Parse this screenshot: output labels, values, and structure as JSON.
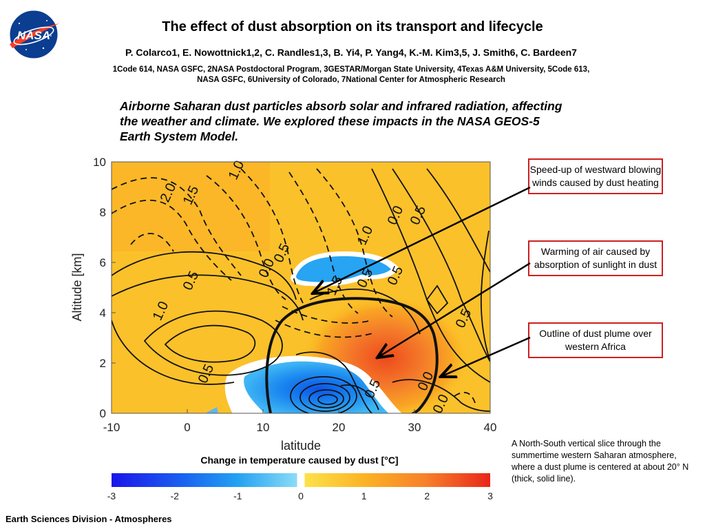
{
  "header": {
    "logo_text": "NASA",
    "title": "The effect of dust absorption on its transport and lifecycle",
    "authors": "P. Colarco1, E. Nowottnick1,2, C. Randles1,3, B. Yi4, P. Yang4, K.-M. Kim3,5, J. Smith6, C. Bardeen7",
    "affiliations_line1": "1Code 614, NASA GSFC, 2NASA Postdoctoral Program, 3GESTAR/Morgan State University, 4Texas A&M University, 5Code 613,",
    "affiliations_line2": "NASA GSFC, 6University of Colorado, 7National Center for Atmospheric Research"
  },
  "summary": "Airborne Saharan dust particles absorb solar and infrared radiation, affecting the weather and climate.  We explored these impacts in the NASA GEOS-5 Earth System Model.",
  "callouts": [
    {
      "text": "Speed-up of westward blowing winds caused by dust heating"
    },
    {
      "text": "Warming of air caused by absorption of sunlight in dust"
    },
    {
      "text": "Outline of dust plume over western Africa"
    }
  ],
  "caption": "A North-South vertical slice through the summertime western Saharan atmosphere, where a dust plume is centered at about 20° N (thick, solid line).",
  "footer": "Earth Sciences Division - Atmospheres",
  "colors": {
    "callout_border": "#cc2020",
    "warm": "#f0682a",
    "cool": "#1a78f0"
  },
  "chart_data": {
    "type": "heatmap",
    "xlabel": "latitude",
    "ylabel": "Altitude [km]",
    "xlim": [
      -10,
      40
    ],
    "ylim": [
      0,
      10
    ],
    "xticks": [
      -10,
      0,
      10,
      20,
      30,
      40
    ],
    "yticks": [
      0,
      2,
      4,
      6,
      8,
      10
    ],
    "fields": {
      "shaded": "Change in temperature caused by dust [°C]",
      "contours": "Change in zonal wind (unlabeled units)"
    },
    "colorbar": {
      "title": "Change in temperature caused by dust [°C]",
      "range": [
        -3,
        3
      ],
      "ticks": [
        -3,
        -2,
        -1,
        0,
        1,
        2,
        3
      ]
    },
    "regions": [
      {
        "feature": "warming",
        "lat": 25,
        "alt": 2.3,
        "value": 2.5
      },
      {
        "feature": "cooling",
        "lat": 18,
        "alt": 0.8,
        "value": -2.0
      },
      {
        "feature": "cooling",
        "lat": 21,
        "alt": 6.0,
        "value": -1.0
      }
    ],
    "contour_labels": [
      {
        "text": "2.0",
        "lat": -2,
        "alt": 8.7
      },
      {
        "text": "1.5",
        "lat": 1,
        "alt": 8.6
      },
      {
        "text": "1.0",
        "lat": 7,
        "alt": 9.6
      },
      {
        "text": "0.5",
        "lat": 1,
        "alt": 5.2
      },
      {
        "text": "1.0",
        "lat": -3,
        "alt": 4.0
      },
      {
        "text": "0.5",
        "lat": 3,
        "alt": 1.5
      },
      {
        "text": "0.0",
        "lat": 11,
        "alt": 5.7
      },
      {
        "text": "0.5",
        "lat": 13,
        "alt": 6.3
      },
      {
        "text": "0.0",
        "lat": 28,
        "alt": 7.8
      },
      {
        "text": "0.5",
        "lat": 31,
        "alt": 7.8
      },
      {
        "text": "1.0",
        "lat": 24,
        "alt": 7.0
      },
      {
        "text": "0.5",
        "lat": 24,
        "alt": 5.3
      },
      {
        "text": "0.5",
        "lat": 28,
        "alt": 5.4
      },
      {
        "text": "1.5",
        "lat": 20,
        "alt": 5.0
      },
      {
        "text": "0.5",
        "lat": 37,
        "alt": 3.7
      },
      {
        "text": "0.0",
        "lat": 32,
        "alt": 1.2
      },
      {
        "text": "0.5",
        "lat": 25,
        "alt": 0.9
      },
      {
        "text": "0.0",
        "lat": 34,
        "alt": 0.3
      }
    ],
    "dust_plume_outline": [
      {
        "lat": 13,
        "alt": 0.0
      },
      {
        "lat": 12,
        "alt": 1.5
      },
      {
        "lat": 13,
        "alt": 3.0
      },
      {
        "lat": 16,
        "alt": 4.2
      },
      {
        "lat": 22,
        "alt": 4.5
      },
      {
        "lat": 29,
        "alt": 4.2
      },
      {
        "lat": 33,
        "alt": 3.0
      },
      {
        "lat": 33,
        "alt": 1.5
      },
      {
        "lat": 30,
        "alt": 0.2
      },
      {
        "lat": 26,
        "alt": -0.1
      }
    ]
  }
}
